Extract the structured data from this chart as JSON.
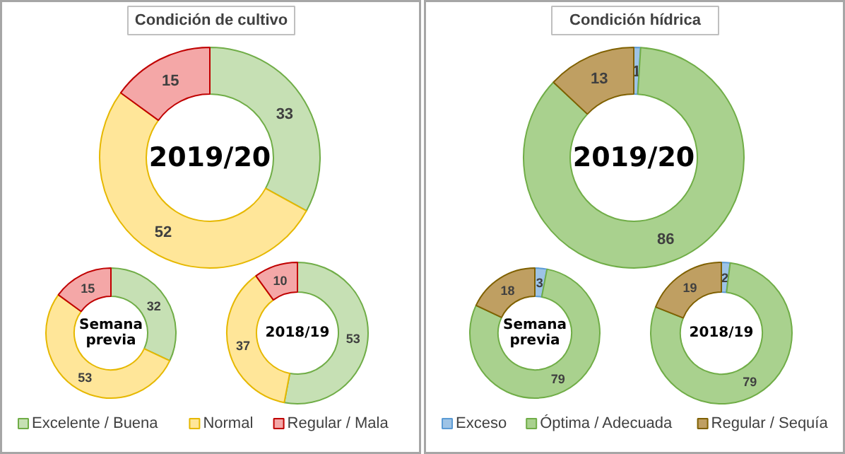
{
  "chart_data": [
    {
      "type": "donut",
      "title": "Condición de cultivo",
      "categories": [
        "Excelente / Buena",
        "Normal",
        "Regular / Mala"
      ],
      "values": [
        33,
        52,
        15
      ],
      "colors": [
        "#c6e0b4",
        "#ffe699",
        "#f4a7a7"
      ],
      "annotations": [
        "2019/20"
      ],
      "data_labels": true,
      "legend": "bottom"
    },
    {
      "type": "donut",
      "values": [
        32,
        53,
        15
      ],
      "colors": [
        "#c6e0b4",
        "#ffe699",
        "#f4a7a7"
      ],
      "annotations": [
        "Semana\nprevia"
      ],
      "data_labels": true
    },
    {
      "type": "donut",
      "values": [
        53,
        37,
        10
      ],
      "colors": [
        "#c6e0b4",
        "#ffe699",
        "#f4a7a7"
      ],
      "annotations": [
        "2018/19"
      ],
      "data_labels": true
    },
    {
      "type": "donut",
      "title": "Condición hídrica",
      "categories": [
        "Exceso",
        "Óptima / Adecuada",
        "Regular / Sequía"
      ],
      "values": [
        1,
        86,
        13
      ],
      "colors": [
        "#9dc3e6",
        "#a9d18e",
        "#bf9f62"
      ],
      "annotations": [
        "2019/20"
      ],
      "data_labels": true,
      "legend": "bottom"
    },
    {
      "type": "donut",
      "values": [
        3,
        79,
        18
      ],
      "colors": [
        "#9dc3e6",
        "#a9d18e",
        "#bf9f62"
      ],
      "annotations": [
        "Semana\nprevia"
      ],
      "data_labels": true
    },
    {
      "type": "donut",
      "values": [
        2,
        79,
        19
      ],
      "colors": [
        "#9dc3e6",
        "#a9d18e",
        "#bf9f62"
      ],
      "annotations": [
        "2018/19"
      ],
      "data_labels": true
    }
  ]
}
